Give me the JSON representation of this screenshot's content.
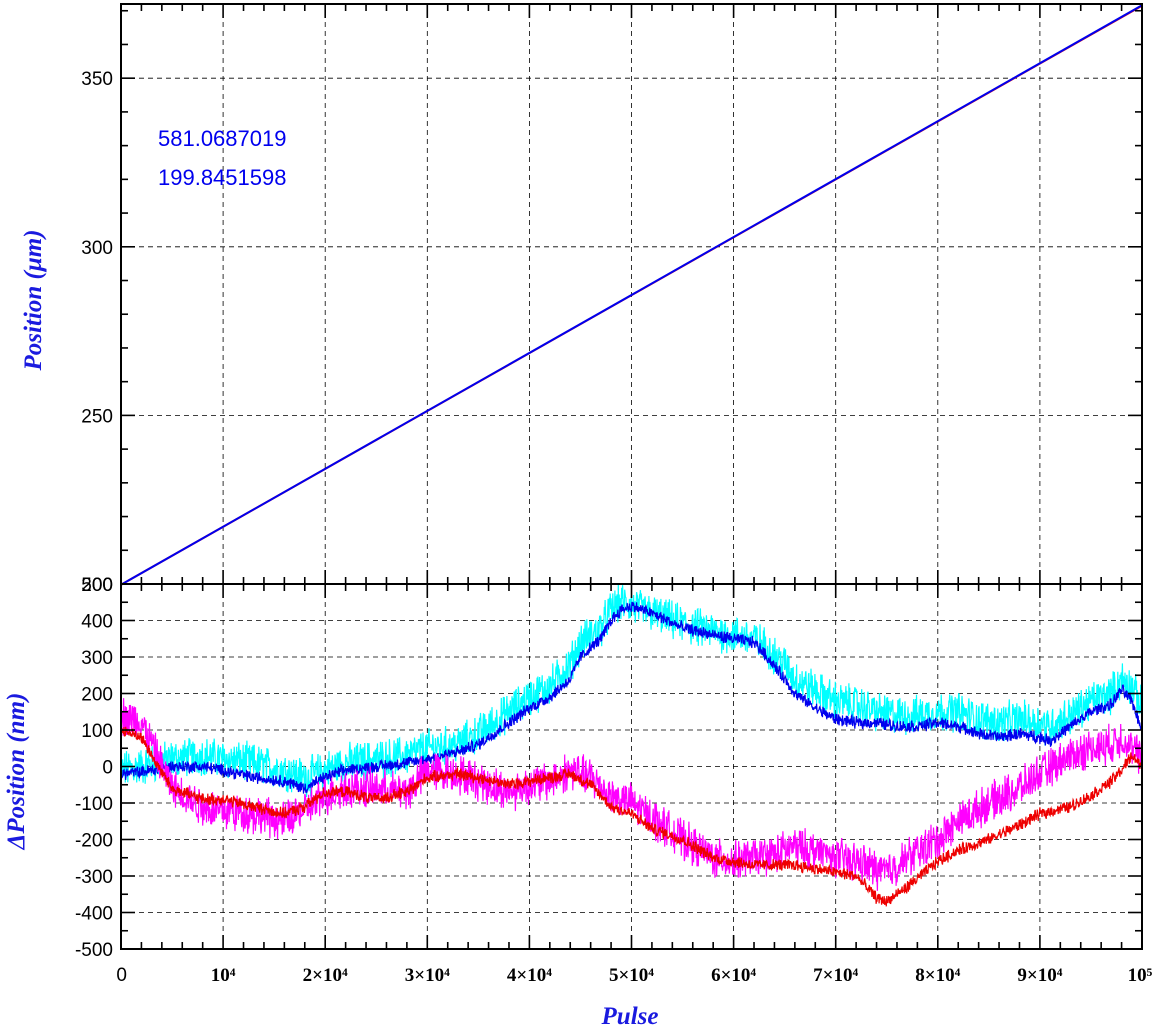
{
  "chart_data": [
    {
      "type": "line",
      "panel": "top",
      "title": "",
      "xlabel": "",
      "ylabel": "Position (μm)",
      "xlim": [
        0,
        100000
      ],
      "ylim": [
        200,
        372
      ],
      "yticks": [
        200,
        250,
        300,
        350
      ],
      "ytick_labels": [
        "200",
        "250",
        "300",
        "350"
      ],
      "grid": true,
      "annotations": [
        "581.0687019",
        "199.8451598"
      ],
      "series": [
        {
          "color": "#e00000",
          "x": [
            0,
            100000
          ],
          "y": [
            199.8,
            371.5
          ]
        },
        {
          "color": "#0000ee",
          "x": [
            0,
            100000
          ],
          "y": [
            199.8,
            371.6
          ]
        }
      ]
    },
    {
      "type": "line",
      "panel": "bottom",
      "title": "",
      "xlabel": "Pulse",
      "ylabel": "ΔPosition (nm)",
      "xlim": [
        0,
        100000
      ],
      "ylim": [
        -500,
        500
      ],
      "yticks": [
        -500,
        -400,
        -300,
        -200,
        -100,
        0,
        100,
        200,
        300,
        400,
        500
      ],
      "ytick_labels": [
        "-500",
        "-400",
        "-300",
        "-200",
        "-100",
        "0",
        "100",
        "200",
        "300",
        "400",
        "500"
      ],
      "xticks": [
        0,
        10000,
        20000,
        30000,
        40000,
        50000,
        60000,
        70000,
        80000,
        90000,
        100000
      ],
      "xtick_labels": [
        "0",
        "10⁴",
        "2×10⁴",
        "3×10⁴",
        "4×10⁴",
        "5×10⁴",
        "6×10⁴",
        "7×10⁴",
        "8×10⁴",
        "9×10⁴",
        "10⁵"
      ],
      "grid": true,
      "series": [
        {
          "color": "#00ffff",
          "noise": 45,
          "x": [
            0,
            2000,
            5000,
            8000,
            10000,
            13000,
            16000,
            18000,
            20000,
            22000,
            25000,
            28000,
            30000,
            33000,
            35000,
            38000,
            40000,
            42000,
            44000,
            45000,
            47000,
            48000,
            49000,
            50000,
            52000,
            55000,
            58000,
            60000,
            62000,
            63000,
            65000,
            66000,
            68000,
            70000,
            72000,
            74000,
            76000,
            78000,
            80000,
            82000,
            84000,
            86000,
            88000,
            90000,
            91000,
            93000,
            95000,
            97000,
            98000,
            99000,
            100000
          ],
          "y": [
            -10,
            0,
            20,
            30,
            20,
            10,
            -10,
            -30,
            -10,
            10,
            20,
            30,
            50,
            60,
            90,
            150,
            190,
            220,
            280,
            340,
            380,
            430,
            450,
            440,
            420,
            390,
            370,
            360,
            350,
            330,
            280,
            240,
            210,
            180,
            170,
            150,
            140,
            140,
            150,
            150,
            130,
            120,
            130,
            120,
            110,
            140,
            180,
            200,
            240,
            220,
            160
          ]
        },
        {
          "color": "#0000ee",
          "noise": 14,
          "x": [
            0,
            2000,
            5000,
            8000,
            10000,
            13000,
            16000,
            18000,
            20000,
            22000,
            25000,
            28000,
            30000,
            33000,
            35000,
            38000,
            40000,
            42000,
            44000,
            45000,
            47000,
            48000,
            49000,
            50000,
            52000,
            55000,
            58000,
            60000,
            62000,
            63000,
            65000,
            66000,
            68000,
            70000,
            72000,
            74000,
            76000,
            78000,
            80000,
            82000,
            84000,
            86000,
            88000,
            90000,
            91000,
            93000,
            95000,
            97000,
            98000,
            99000,
            100000
          ],
          "y": [
            -20,
            -15,
            0,
            0,
            -10,
            -30,
            -40,
            -60,
            -30,
            -10,
            0,
            10,
            20,
            40,
            60,
            120,
            160,
            190,
            240,
            300,
            350,
            400,
            430,
            440,
            420,
            380,
            360,
            350,
            340,
            310,
            240,
            200,
            160,
            130,
            120,
            120,
            110,
            110,
            120,
            110,
            90,
            80,
            90,
            80,
            70,
            110,
            150,
            170,
            210,
            180,
            100
          ]
        },
        {
          "color": "#ff00ff",
          "noise": 45,
          "x": [
            0,
            2000,
            3000,
            5000,
            8000,
            10000,
            13000,
            16000,
            18000,
            20000,
            22000,
            25000,
            28000,
            30000,
            33000,
            35000,
            38000,
            40000,
            42000,
            44000,
            46000,
            48000,
            50000,
            52000,
            55000,
            58000,
            60000,
            62000,
            64000,
            66000,
            68000,
            70000,
            72000,
            74000,
            75000,
            77000,
            80000,
            82000,
            85000,
            88000,
            90000,
            93000,
            95000,
            97000,
            98000,
            99000,
            100000
          ],
          "y": [
            140,
            120,
            60,
            -60,
            -110,
            -120,
            -130,
            -150,
            -120,
            -80,
            -60,
            -60,
            -70,
            -10,
            -20,
            -40,
            -70,
            -50,
            -40,
            -10,
            -30,
            -80,
            -100,
            -140,
            -200,
            -250,
            -260,
            -250,
            -240,
            -220,
            -230,
            -250,
            -260,
            -280,
            -290,
            -250,
            -200,
            -150,
            -100,
            -60,
            -20,
            30,
            50,
            60,
            80,
            50,
            20
          ]
        },
        {
          "color": "#ee0000",
          "noise": 14,
          "x": [
            0,
            2000,
            3000,
            5000,
            8000,
            10000,
            13000,
            16000,
            18000,
            20000,
            22000,
            25000,
            28000,
            30000,
            33000,
            35000,
            38000,
            40000,
            42000,
            44000,
            46000,
            48000,
            50000,
            52000,
            55000,
            58000,
            60000,
            62000,
            64000,
            66000,
            68000,
            70000,
            72000,
            74000,
            75000,
            77000,
            80000,
            82000,
            85000,
            88000,
            90000,
            93000,
            95000,
            97000,
            98000,
            99000,
            100000
          ],
          "y": [
            100,
            80,
            30,
            -60,
            -90,
            -90,
            -110,
            -130,
            -110,
            -70,
            -70,
            -90,
            -70,
            -30,
            -20,
            -30,
            -50,
            -40,
            -30,
            -20,
            -50,
            -110,
            -130,
            -170,
            -200,
            -250,
            -260,
            -270,
            -270,
            -270,
            -280,
            -290,
            -300,
            -360,
            -370,
            -330,
            -260,
            -230,
            -200,
            -160,
            -130,
            -110,
            -80,
            -40,
            -10,
            30,
            0
          ]
        }
      ]
    }
  ]
}
